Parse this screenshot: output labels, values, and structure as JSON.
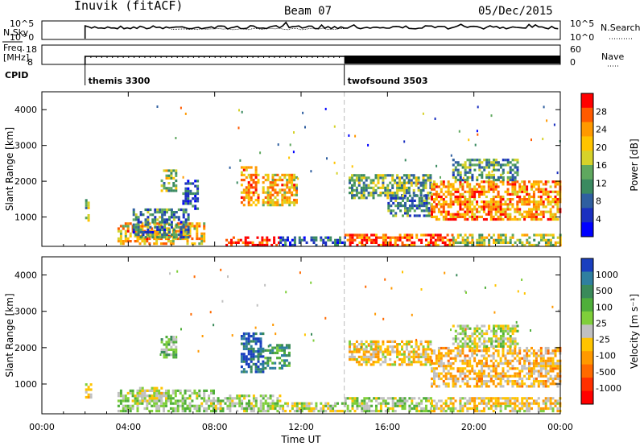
{
  "header": {
    "station": "Inuvik (fitACF)",
    "beam": "Beam 07",
    "date": "05/Dec/2015"
  },
  "summary": {
    "nsky_label": "N.Sky",
    "nsky_ticks": [
      "10^5",
      "10^0"
    ],
    "nsearch_label": "N.Search",
    "nsearch_ticks": [
      "10^5",
      "10^0"
    ],
    "freq_label": "Freq.",
    "freq_unit": "[MHz]",
    "freq_ticks": [
      "18",
      "8"
    ],
    "nave_label": "Nave",
    "nave_ticks": [
      "60",
      "0"
    ],
    "cpid_label": "CPID",
    "programs": [
      {
        "name": "themis 3300",
        "start_hour": 2.0
      },
      {
        "name": "twofsound 3503",
        "start_hour": 14.0
      }
    ]
  },
  "chart_data": [
    {
      "type": "heatmap",
      "title": "",
      "xlabel": "Time UT",
      "ylabel": "Slant Range [km]",
      "x_ticks": [
        "00:00",
        "04:00",
        "08:00",
        "12:00",
        "16:00",
        "20:00",
        "00:00"
      ],
      "xlim": [
        0,
        24
      ],
      "ylim": [
        180,
        4500
      ],
      "y_ticks": [
        1000,
        2000,
        3000,
        4000
      ],
      "colorbar": {
        "label": "Power [dB]",
        "ticks": [
          "28",
          "24",
          "20",
          "16",
          "12",
          "8",
          "4"
        ],
        "colors": [
          "#ff0000",
          "#ff5a00",
          "#ff9900",
          "#ffc400",
          "#d6d22a",
          "#5fa85f",
          "#3a8a60",
          "#2f5fa0",
          "#1a2fc0",
          "#0000ff"
        ],
        "range": [
          0,
          32
        ]
      },
      "regions": [
        {
          "t0": 2.0,
          "t1": 2.2,
          "r0": 800,
          "r1": 1600,
          "level": 14
        },
        {
          "t0": 3.5,
          "t1": 7.5,
          "r0": 220,
          "r1": 800,
          "level": 22
        },
        {
          "t0": 4.2,
          "t1": 6.8,
          "r0": 400,
          "r1": 1200,
          "level": 10
        },
        {
          "t0": 5.5,
          "t1": 6.2,
          "r0": 1700,
          "r1": 2300,
          "level": 16
        },
        {
          "t0": 6.5,
          "t1": 7.2,
          "r0": 1200,
          "r1": 2000,
          "level": 8
        },
        {
          "t0": 8.5,
          "t1": 11.0,
          "r0": 180,
          "r1": 450,
          "level": 30
        },
        {
          "t0": 9.2,
          "t1": 10.0,
          "r0": 1300,
          "r1": 2400,
          "level": 24
        },
        {
          "t0": 10.2,
          "t1": 11.8,
          "r0": 1300,
          "r1": 2200,
          "level": 22
        },
        {
          "t0": 11.0,
          "t1": 14.0,
          "r0": 180,
          "r1": 400,
          "level": 6
        },
        {
          "t0": 14.2,
          "t1": 18.0,
          "r0": 1500,
          "r1": 2200,
          "level": 14
        },
        {
          "t0": 14.0,
          "t1": 19.0,
          "r0": 180,
          "r1": 500,
          "level": 28
        },
        {
          "t0": 16.0,
          "t1": 18.0,
          "r0": 1000,
          "r1": 1600,
          "level": 10
        },
        {
          "t0": 18.0,
          "t1": 24.0,
          "r0": 900,
          "r1": 2000,
          "level": 24
        },
        {
          "t0": 19.0,
          "t1": 22.0,
          "r0": 2000,
          "r1": 2600,
          "level": 12
        },
        {
          "t0": 19.0,
          "t1": 24.0,
          "r0": 180,
          "r1": 500,
          "level": 18
        }
      ]
    },
    {
      "type": "heatmap",
      "title": "",
      "xlabel": "Time UT",
      "ylabel": "Slant Range [km]",
      "x_ticks": [
        "00:00",
        "04:00",
        "08:00",
        "12:00",
        "16:00",
        "20:00",
        "00:00"
      ],
      "xlim": [
        0,
        24
      ],
      "ylim": [
        180,
        4500
      ],
      "y_ticks": [
        1000,
        2000,
        3000,
        4000
      ],
      "colorbar": {
        "label": "Velocity [m s⁻¹]",
        "ticks": [
          "1000",
          "500",
          "100",
          "25",
          "-25",
          "-100",
          "-500",
          "-1000"
        ],
        "colors": [
          "#1a3fbf",
          "#2f7fa0",
          "#3a8a5a",
          "#4fae3a",
          "#7fcf3a",
          "#c0c0c0",
          "#ffc400",
          "#ff9900",
          "#ff6a00",
          "#ff3000",
          "#ff0000"
        ],
        "range": [
          -1200,
          1200
        ]
      },
      "regions": [
        {
          "t0": 2.0,
          "t1": 2.3,
          "r0": 600,
          "r1": 1000,
          "level": -200
        },
        {
          "t0": 3.5,
          "t1": 8.0,
          "r0": 220,
          "r1": 800,
          "level": 200
        },
        {
          "t0": 4.5,
          "t1": 5.5,
          "r0": 500,
          "r1": 900,
          "level": 0
        },
        {
          "t0": 5.5,
          "t1": 6.2,
          "r0": 1700,
          "r1": 2300,
          "level": 300
        },
        {
          "t0": 8.0,
          "t1": 11.0,
          "r0": 220,
          "r1": 700,
          "level": 150
        },
        {
          "t0": 9.2,
          "t1": 10.2,
          "r0": 1300,
          "r1": 2400,
          "level": 900
        },
        {
          "t0": 10.3,
          "t1": 11.5,
          "r0": 1400,
          "r1": 2100,
          "level": 600
        },
        {
          "t0": 11.0,
          "t1": 14.0,
          "r0": 220,
          "r1": 450,
          "level": 50
        },
        {
          "t0": 14.2,
          "t1": 18.0,
          "r0": 1500,
          "r1": 2200,
          "level": -150
        },
        {
          "t0": 14.0,
          "t1": 18.0,
          "r0": 220,
          "r1": 600,
          "level": 120
        },
        {
          "t0": 18.0,
          "t1": 24.0,
          "r0": 900,
          "r1": 2000,
          "level": -250
        },
        {
          "t0": 19.0,
          "t1": 22.0,
          "r0": 2000,
          "r1": 2600,
          "level": 60
        },
        {
          "t0": 18.0,
          "t1": 24.0,
          "r0": 220,
          "r1": 600,
          "level": -120
        }
      ]
    }
  ]
}
